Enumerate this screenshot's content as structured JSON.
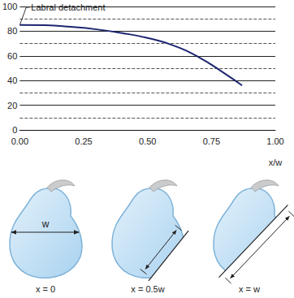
{
  "chart_data": {
    "type": "line",
    "x": [
      0,
      0.1,
      0.2,
      0.3,
      0.4,
      0.5,
      0.6,
      0.7,
      0.8,
      0.87
    ],
    "values": [
      85,
      84.8,
      83.5,
      81.5,
      78.5,
      74.5,
      68.5,
      59,
      46,
      36
    ],
    "color": "#1c2470",
    "line_style": "solid",
    "xlabel": "x/w",
    "xlim": [
      0,
      1
    ],
    "xticks": [
      {
        "value": 0,
        "label": "0.00"
      },
      {
        "value": 0.25,
        "label": "0.25"
      },
      {
        "value": 0.5,
        "label": "0.50"
      },
      {
        "value": 0.75,
        "label": "0.75"
      },
      {
        "value": 1,
        "label": "1.00"
      }
    ],
    "ylim": [
      0,
      100
    ],
    "yticks": [
      0,
      20,
      40,
      60,
      80,
      100
    ],
    "grid": true,
    "annotations": [
      {
        "text": "Labral detachment",
        "x": 0,
        "y": 85
      }
    ]
  },
  "figures": [
    {
      "caption": "x = 0",
      "width_label": "w"
    },
    {
      "caption": "x = 0.5w"
    },
    {
      "caption": "x = w"
    }
  ]
}
